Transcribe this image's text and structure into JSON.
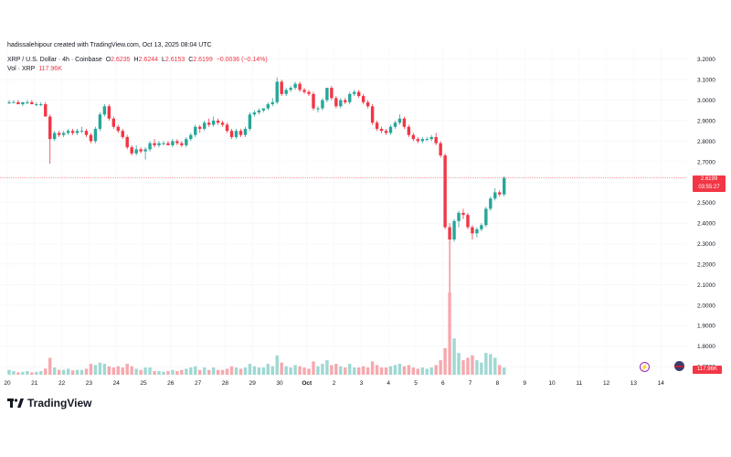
{
  "credit": "hadissalehipour created with TradingView.com, Oct 13, 2025 08:04 UTC",
  "symbol_line": {
    "symbol": "XRP / U.S. Dollar · 4h · Coinbase",
    "open_label": "O",
    "open": "2.6235",
    "high_label": "H",
    "high": "2.6244",
    "low_label": "L",
    "low": "2.6153",
    "close_label": "C",
    "close": "2.6199",
    "change": "−0.0036 (−0.14%)"
  },
  "volume_line": {
    "label": "Vol · XRP",
    "value": "117.96K"
  },
  "price_tag": {
    "price": "2.6199",
    "countdown": "03:55:27"
  },
  "volume_tag": "117.96K",
  "brand": "TradingView",
  "colors": {
    "up": "#26a69a",
    "down": "#f23645",
    "up_volume": "#9fd8d2",
    "down_volume": "#f7a8ad"
  },
  "icons": [
    "tradingview-logo-icon",
    "lightning-icon",
    "us-flag-icon"
  ],
  "chart_data": {
    "type": "candlestick",
    "x_tick_labels": [
      "20",
      "21",
      "22",
      "23",
      "24",
      "25",
      "26",
      "27",
      "28",
      "29",
      "30",
      "Oct",
      "2",
      "3",
      "4",
      "5",
      "6",
      "7",
      "8",
      "9",
      "10",
      "11",
      "12",
      "13",
      "14"
    ],
    "y_ticks": [
      "3.2000",
      "3.1000",
      "3.0000",
      "2.9000",
      "2.8000",
      "2.7000",
      "2.6000",
      "2.5000",
      "2.4000",
      "2.3000",
      "2.2000",
      "2.1000",
      "2.0000",
      "1.9000",
      "1.8000",
      "1.7000"
    ],
    "ylim": [
      1.66,
      3.23
    ],
    "candles": [
      {
        "o": 2.99,
        "h": 3.0,
        "l": 2.98,
        "c": 2.99
      },
      {
        "o": 2.99,
        "h": 3.0,
        "l": 2.99,
        "c": 2.99
      },
      {
        "o": 2.99,
        "h": 3.0,
        "l": 2.98,
        "c": 2.98
      },
      {
        "o": 2.98,
        "h": 2.99,
        "l": 2.97,
        "c": 2.99
      },
      {
        "o": 2.99,
        "h": 3.0,
        "l": 2.98,
        "c": 2.99
      },
      {
        "o": 2.99,
        "h": 3.0,
        "l": 2.98,
        "c": 2.98
      },
      {
        "o": 2.98,
        "h": 2.99,
        "l": 2.97,
        "c": 2.98
      },
      {
        "o": 2.98,
        "h": 2.99,
        "l": 2.97,
        "c": 2.98
      },
      {
        "o": 2.98,
        "h": 2.99,
        "l": 2.92,
        "c": 2.92
      },
      {
        "o": 2.92,
        "h": 2.93,
        "l": 2.69,
        "c": 2.81
      },
      {
        "o": 2.81,
        "h": 2.85,
        "l": 2.8,
        "c": 2.84
      },
      {
        "o": 2.84,
        "h": 2.85,
        "l": 2.82,
        "c": 2.83
      },
      {
        "o": 2.83,
        "h": 2.85,
        "l": 2.82,
        "c": 2.84
      },
      {
        "o": 2.84,
        "h": 2.86,
        "l": 2.83,
        "c": 2.85
      },
      {
        "o": 2.85,
        "h": 2.86,
        "l": 2.83,
        "c": 2.84
      },
      {
        "o": 2.84,
        "h": 2.86,
        "l": 2.83,
        "c": 2.85
      },
      {
        "o": 2.85,
        "h": 2.87,
        "l": 2.84,
        "c": 2.85
      },
      {
        "o": 2.85,
        "h": 2.86,
        "l": 2.82,
        "c": 2.83
      },
      {
        "o": 2.83,
        "h": 2.84,
        "l": 2.79,
        "c": 2.8
      },
      {
        "o": 2.8,
        "h": 2.87,
        "l": 2.79,
        "c": 2.86
      },
      {
        "o": 2.86,
        "h": 2.94,
        "l": 2.85,
        "c": 2.93
      },
      {
        "o": 2.93,
        "h": 2.98,
        "l": 2.92,
        "c": 2.97
      },
      {
        "o": 2.97,
        "h": 2.98,
        "l": 2.9,
        "c": 2.91
      },
      {
        "o": 2.91,
        "h": 2.92,
        "l": 2.86,
        "c": 2.87
      },
      {
        "o": 2.87,
        "h": 2.88,
        "l": 2.84,
        "c": 2.85
      },
      {
        "o": 2.85,
        "h": 2.86,
        "l": 2.81,
        "c": 2.82
      },
      {
        "o": 2.82,
        "h": 2.83,
        "l": 2.76,
        "c": 2.77
      },
      {
        "o": 2.77,
        "h": 2.78,
        "l": 2.73,
        "c": 2.74
      },
      {
        "o": 2.74,
        "h": 2.78,
        "l": 2.73,
        "c": 2.76
      },
      {
        "o": 2.76,
        "h": 2.77,
        "l": 2.74,
        "c": 2.75
      },
      {
        "o": 2.75,
        "h": 2.77,
        "l": 2.71,
        "c": 2.76
      },
      {
        "o": 2.76,
        "h": 2.8,
        "l": 2.75,
        "c": 2.79
      },
      {
        "o": 2.79,
        "h": 2.81,
        "l": 2.77,
        "c": 2.78
      },
      {
        "o": 2.78,
        "h": 2.8,
        "l": 2.77,
        "c": 2.79
      },
      {
        "o": 2.79,
        "h": 2.8,
        "l": 2.78,
        "c": 2.79
      },
      {
        "o": 2.79,
        "h": 2.8,
        "l": 2.78,
        "c": 2.78
      },
      {
        "o": 2.78,
        "h": 2.81,
        "l": 2.77,
        "c": 2.8
      },
      {
        "o": 2.8,
        "h": 2.81,
        "l": 2.78,
        "c": 2.79
      },
      {
        "o": 2.79,
        "h": 2.8,
        "l": 2.77,
        "c": 2.78
      },
      {
        "o": 2.78,
        "h": 2.82,
        "l": 2.77,
        "c": 2.81
      },
      {
        "o": 2.81,
        "h": 2.84,
        "l": 2.8,
        "c": 2.83
      },
      {
        "o": 2.83,
        "h": 2.88,
        "l": 2.82,
        "c": 2.87
      },
      {
        "o": 2.87,
        "h": 2.88,
        "l": 2.84,
        "c": 2.86
      },
      {
        "o": 2.86,
        "h": 2.9,
        "l": 2.85,
        "c": 2.89
      },
      {
        "o": 2.89,
        "h": 2.91,
        "l": 2.87,
        "c": 2.88
      },
      {
        "o": 2.88,
        "h": 2.92,
        "l": 2.87,
        "c": 2.9
      },
      {
        "o": 2.9,
        "h": 2.91,
        "l": 2.88,
        "c": 2.89
      },
      {
        "o": 2.89,
        "h": 2.9,
        "l": 2.87,
        "c": 2.88
      },
      {
        "o": 2.88,
        "h": 2.89,
        "l": 2.84,
        "c": 2.85
      },
      {
        "o": 2.85,
        "h": 2.86,
        "l": 2.81,
        "c": 2.82
      },
      {
        "o": 2.82,
        "h": 2.86,
        "l": 2.81,
        "c": 2.85
      },
      {
        "o": 2.85,
        "h": 2.86,
        "l": 2.82,
        "c": 2.83
      },
      {
        "o": 2.83,
        "h": 2.87,
        "l": 2.82,
        "c": 2.86
      },
      {
        "o": 2.86,
        "h": 2.94,
        "l": 2.85,
        "c": 2.93
      },
      {
        "o": 2.93,
        "h": 2.95,
        "l": 2.92,
        "c": 2.94
      },
      {
        "o": 2.94,
        "h": 2.96,
        "l": 2.93,
        "c": 2.95
      },
      {
        "o": 2.95,
        "h": 2.96,
        "l": 2.94,
        "c": 2.96
      },
      {
        "o": 2.96,
        "h": 2.99,
        "l": 2.95,
        "c": 2.98
      },
      {
        "o": 2.98,
        "h": 3.01,
        "l": 2.97,
        "c": 2.99
      },
      {
        "o": 2.99,
        "h": 3.11,
        "l": 2.98,
        "c": 3.09
      },
      {
        "o": 3.09,
        "h": 3.1,
        "l": 3.02,
        "c": 3.03
      },
      {
        "o": 3.03,
        "h": 3.06,
        "l": 3.02,
        "c": 3.05
      },
      {
        "o": 3.05,
        "h": 3.07,
        "l": 3.04,
        "c": 3.06
      },
      {
        "o": 3.06,
        "h": 3.09,
        "l": 3.05,
        "c": 3.08
      },
      {
        "o": 3.08,
        "h": 3.09,
        "l": 3.04,
        "c": 3.05
      },
      {
        "o": 3.05,
        "h": 3.06,
        "l": 3.03,
        "c": 3.04
      },
      {
        "o": 3.04,
        "h": 3.05,
        "l": 3.02,
        "c": 3.03
      },
      {
        "o": 3.03,
        "h": 3.04,
        "l": 2.95,
        "c": 2.96
      },
      {
        "o": 2.96,
        "h": 2.97,
        "l": 2.94,
        "c": 2.96
      },
      {
        "o": 2.96,
        "h": 3.01,
        "l": 2.95,
        "c": 3.0
      },
      {
        "o": 3.0,
        "h": 3.06,
        "l": 2.99,
        "c": 3.06
      },
      {
        "o": 3.06,
        "h": 3.07,
        "l": 3.0,
        "c": 3.01
      },
      {
        "o": 3.01,
        "h": 3.02,
        "l": 2.96,
        "c": 2.97
      },
      {
        "o": 2.97,
        "h": 3.01,
        "l": 2.96,
        "c": 3.0
      },
      {
        "o": 3.0,
        "h": 3.01,
        "l": 2.98,
        "c": 2.99
      },
      {
        "o": 2.99,
        "h": 3.04,
        "l": 2.98,
        "c": 3.03
      },
      {
        "o": 3.03,
        "h": 3.05,
        "l": 3.02,
        "c": 3.04
      },
      {
        "o": 3.04,
        "h": 3.05,
        "l": 3.01,
        "c": 3.02
      },
      {
        "o": 3.02,
        "h": 3.03,
        "l": 2.98,
        "c": 2.99
      },
      {
        "o": 2.99,
        "h": 3.0,
        "l": 2.96,
        "c": 2.97
      },
      {
        "o": 2.97,
        "h": 2.98,
        "l": 2.88,
        "c": 2.89
      },
      {
        "o": 2.89,
        "h": 2.9,
        "l": 2.85,
        "c": 2.86
      },
      {
        "o": 2.86,
        "h": 2.87,
        "l": 2.84,
        "c": 2.85
      },
      {
        "o": 2.85,
        "h": 2.86,
        "l": 2.83,
        "c": 2.84
      },
      {
        "o": 2.84,
        "h": 2.88,
        "l": 2.83,
        "c": 2.87
      },
      {
        "o": 2.87,
        "h": 2.9,
        "l": 2.86,
        "c": 2.89
      },
      {
        "o": 2.89,
        "h": 2.93,
        "l": 2.88,
        "c": 2.91
      },
      {
        "o": 2.91,
        "h": 2.92,
        "l": 2.86,
        "c": 2.87
      },
      {
        "o": 2.87,
        "h": 2.88,
        "l": 2.82,
        "c": 2.83
      },
      {
        "o": 2.83,
        "h": 2.84,
        "l": 2.8,
        "c": 2.81
      },
      {
        "o": 2.81,
        "h": 2.82,
        "l": 2.79,
        "c": 2.8
      },
      {
        "o": 2.8,
        "h": 2.82,
        "l": 2.79,
        "c": 2.81
      },
      {
        "o": 2.81,
        "h": 2.82,
        "l": 2.8,
        "c": 2.81
      },
      {
        "o": 2.81,
        "h": 2.83,
        "l": 2.8,
        "c": 2.82
      },
      {
        "o": 2.82,
        "h": 2.84,
        "l": 2.78,
        "c": 2.79
      },
      {
        "o": 2.79,
        "h": 2.8,
        "l": 2.72,
        "c": 2.73
      },
      {
        "o": 2.73,
        "h": 2.74,
        "l": 2.37,
        "c": 2.38
      },
      {
        "o": 2.38,
        "h": 2.4,
        "l": 1.72,
        "c": 2.32
      },
      {
        "o": 2.32,
        "h": 2.42,
        "l": 2.31,
        "c": 2.41
      },
      {
        "o": 2.41,
        "h": 2.46,
        "l": 2.38,
        "c": 2.45
      },
      {
        "o": 2.45,
        "h": 2.47,
        "l": 2.42,
        "c": 2.44
      },
      {
        "o": 2.44,
        "h": 2.45,
        "l": 2.37,
        "c": 2.38
      },
      {
        "o": 2.38,
        "h": 2.39,
        "l": 2.32,
        "c": 2.35
      },
      {
        "o": 2.35,
        "h": 2.38,
        "l": 2.33,
        "c": 2.37
      },
      {
        "o": 2.37,
        "h": 2.4,
        "l": 2.36,
        "c": 2.39
      },
      {
        "o": 2.39,
        "h": 2.48,
        "l": 2.38,
        "c": 2.47
      },
      {
        "o": 2.47,
        "h": 2.53,
        "l": 2.46,
        "c": 2.52
      },
      {
        "o": 2.52,
        "h": 2.57,
        "l": 2.51,
        "c": 2.55
      },
      {
        "o": 2.55,
        "h": 2.56,
        "l": 2.53,
        "c": 2.54
      },
      {
        "o": 2.54,
        "h": 2.63,
        "l": 2.53,
        "c": 2.62
      }
    ],
    "volumes": [
      0.2,
      0.15,
      0.1,
      0.12,
      0.15,
      0.1,
      0.12,
      0.15,
      0.25,
      0.7,
      0.3,
      0.2,
      0.2,
      0.25,
      0.18,
      0.2,
      0.2,
      0.25,
      0.45,
      0.4,
      0.5,
      0.45,
      0.35,
      0.3,
      0.35,
      0.3,
      0.45,
      0.35,
      0.25,
      0.2,
      0.3,
      0.3,
      0.15,
      0.15,
      0.12,
      0.15,
      0.2,
      0.15,
      0.2,
      0.25,
      0.3,
      0.35,
      0.2,
      0.3,
      0.2,
      0.3,
      0.2,
      0.2,
      0.25,
      0.35,
      0.3,
      0.25,
      0.3,
      0.45,
      0.35,
      0.3,
      0.3,
      0.45,
      0.35,
      0.8,
      0.5,
      0.35,
      0.3,
      0.4,
      0.35,
      0.3,
      0.25,
      0.55,
      0.35,
      0.45,
      0.6,
      0.4,
      0.45,
      0.35,
      0.3,
      0.45,
      0.3,
      0.3,
      0.35,
      0.3,
      0.55,
      0.4,
      0.3,
      0.3,
      0.35,
      0.4,
      0.45,
      0.35,
      0.4,
      0.3,
      0.25,
      0.3,
      0.25,
      0.3,
      0.4,
      0.6,
      1.1,
      3.4,
      1.5,
      0.9,
      0.6,
      0.7,
      0.8,
      0.6,
      0.5,
      0.9,
      0.85,
      0.7,
      0.4,
      0.3
    ]
  }
}
